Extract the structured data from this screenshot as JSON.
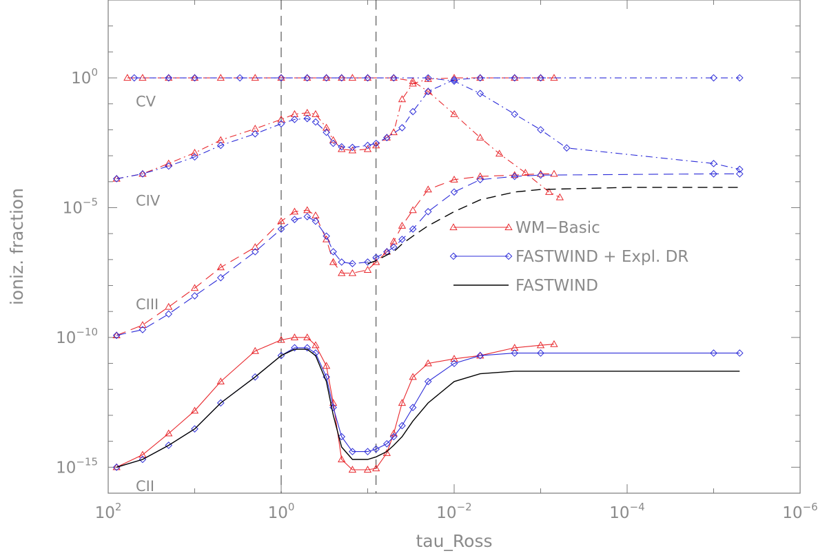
{
  "chart_data": {
    "type": "line",
    "xlabel": "tau_Ross",
    "ylabel": "ioniz. fraction",
    "x_scale": "log",
    "x_reversed": true,
    "xlim": [
      100,
      1e-06
    ],
    "y_scale": "log",
    "ylim": [
      1e-16,
      1000.0
    ],
    "x_ticks": [
      {
        "base": "10",
        "exp": "2",
        "v": 100
      },
      {
        "base": "10",
        "exp": "0",
        "v": 1
      },
      {
        "base": "10",
        "exp": "−2",
        "v": 0.01
      },
      {
        "base": "10",
        "exp": "−4",
        "v": 0.0001
      },
      {
        "base": "10",
        "exp": "−6",
        "v": 1e-06
      }
    ],
    "y_ticks": [
      {
        "base": "10",
        "exp": "0",
        "v": 1
      },
      {
        "base": "10",
        "exp": "−5",
        "v": 1e-05
      },
      {
        "base": "10",
        "exp": "−10",
        "v": 1e-10
      },
      {
        "base": "10",
        "exp": "−15",
        "v": 1e-15
      }
    ],
    "vertical_lines": [
      1.0,
      0.08
    ],
    "ion_labels": [
      {
        "text": "CV",
        "tau": 48,
        "value": 0.08
      },
      {
        "text": "CIV",
        "tau": 48,
        "value": 1.2e-05
      },
      {
        "text": "CIII",
        "tau": 48,
        "value": 1.2e-09
      },
      {
        "text": "CII",
        "tau": 48,
        "value": 1.2e-16
      }
    ],
    "legend": {
      "position": "center-right",
      "entries": [
        {
          "label": "WM−Basic",
          "color": "#e8272c",
          "marker": "triangle"
        },
        {
          "label": "FASTWIND + Expl. DR",
          "color": "#2b2bd8",
          "marker": "diamond"
        },
        {
          "label": "FASTWIND",
          "color": "#000000",
          "marker": "none"
        }
      ]
    },
    "series": [
      {
        "name": "WM−Basic CV",
        "color": "#e8272c",
        "dash": "10 5 2 5",
        "marker": "triangle",
        "points": [
          [
            60,
            1.0
          ],
          [
            40,
            1.0
          ],
          [
            20,
            1.0
          ],
          [
            10,
            1.0
          ],
          [
            5,
            1.0
          ],
          [
            2,
            1.0
          ],
          [
            1,
            1.0
          ],
          [
            0.5,
            1.0
          ],
          [
            0.3,
            1.0
          ],
          [
            0.2,
            1.0
          ],
          [
            0.15,
            1.0
          ],
          [
            0.1,
            1.0
          ],
          [
            0.05,
            1.0
          ],
          [
            0.03,
            0.75
          ],
          [
            0.02,
            0.3
          ],
          [
            0.01,
            0.04
          ],
          [
            0.005,
            0.005
          ],
          [
            0.003,
            0.0012
          ],
          [
            0.0015,
            0.00022
          ],
          [
            0.0008,
            4e-05
          ],
          [
            0.0006,
            2.5e-05
          ]
        ]
      },
      {
        "name": "WM−Basic CIV",
        "color": "#e8272c",
        "dash": "10 5 2 5",
        "marker": "triangle",
        "points": [
          [
            80,
            0.00013
          ],
          [
            40,
            0.0002
          ],
          [
            20,
            0.0005
          ],
          [
            10,
            0.0013
          ],
          [
            5,
            0.004
          ],
          [
            2,
            0.011
          ],
          [
            1,
            0.025
          ],
          [
            0.7,
            0.04
          ],
          [
            0.5,
            0.045
          ],
          [
            0.4,
            0.04
          ],
          [
            0.3,
            0.012
          ],
          [
            0.25,
            0.004
          ],
          [
            0.2,
            0.0018
          ],
          [
            0.15,
            0.0016
          ],
          [
            0.1,
            0.0018
          ],
          [
            0.08,
            0.0025
          ],
          [
            0.06,
            0.005
          ],
          [
            0.05,
            0.008
          ],
          [
            0.04,
            0.15
          ],
          [
            0.03,
            0.6
          ],
          [
            0.02,
            0.9
          ],
          [
            0.01,
            1.0
          ],
          [
            0.005,
            1.0
          ],
          [
            0.002,
            1.0
          ],
          [
            0.001,
            1.0
          ],
          [
            0.0007,
            1.0
          ]
        ]
      },
      {
        "name": "WM−Basic CIII",
        "color": "#e8272c",
        "dash": "14 8",
        "marker": "triangle",
        "points": [
          [
            80,
            1.2e-10
          ],
          [
            40,
            3e-10
          ],
          [
            20,
            1.5e-09
          ],
          [
            10,
            8e-09
          ],
          [
            5,
            5e-08
          ],
          [
            2,
            3e-07
          ],
          [
            1,
            3e-06
          ],
          [
            0.7,
            7e-06
          ],
          [
            0.5,
            8e-06
          ],
          [
            0.4,
            5e-06
          ],
          [
            0.3,
            6e-07
          ],
          [
            0.25,
            8e-08
          ],
          [
            0.2,
            3e-08
          ],
          [
            0.15,
            3e-08
          ],
          [
            0.1,
            4e-08
          ],
          [
            0.08,
            8e-08
          ],
          [
            0.06,
            2e-07
          ],
          [
            0.05,
            5e-07
          ],
          [
            0.04,
            2e-06
          ],
          [
            0.03,
            8e-06
          ],
          [
            0.02,
            5e-05
          ],
          [
            0.01,
            0.00012
          ],
          [
            0.005,
            0.00016
          ],
          [
            0.002,
            0.00018
          ],
          [
            0.001,
            0.0002
          ],
          [
            0.0007,
            0.0002
          ]
        ]
      },
      {
        "name": "WM−Basic CII",
        "color": "#e8272c",
        "dash": "",
        "marker": "triangle",
        "points": [
          [
            80,
            1e-15
          ],
          [
            40,
            3e-15
          ],
          [
            20,
            2e-14
          ],
          [
            10,
            1.5e-13
          ],
          [
            5,
            2e-12
          ],
          [
            2,
            3e-11
          ],
          [
            1,
            8e-11
          ],
          [
            0.7,
            1e-10
          ],
          [
            0.5,
            1e-10
          ],
          [
            0.4,
            5e-11
          ],
          [
            0.3,
            8e-12
          ],
          [
            0.25,
            3e-13
          ],
          [
            0.2,
            2e-15
          ],
          [
            0.15,
            8e-16
          ],
          [
            0.1,
            8e-16
          ],
          [
            0.08,
            9e-16
          ],
          [
            0.06,
            3.5e-15
          ],
          [
            0.05,
            2e-14
          ],
          [
            0.04,
            3e-13
          ],
          [
            0.03,
            3e-12
          ],
          [
            0.02,
            1e-11
          ],
          [
            0.01,
            1.5e-11
          ],
          [
            0.005,
            2e-11
          ],
          [
            0.002,
            4e-11
          ],
          [
            0.001,
            5e-11
          ],
          [
            0.0007,
            5.5e-11
          ]
        ]
      },
      {
        "name": "FASTWIND + Expl. DR CV",
        "color": "#2b2bd8",
        "dash": "10 5 2 5",
        "marker": "diamond",
        "points": [
          [
            50,
            1.0
          ],
          [
            20,
            1.0
          ],
          [
            10,
            1.0
          ],
          [
            3,
            1.0
          ],
          [
            1,
            1.0
          ],
          [
            0.5,
            1.0
          ],
          [
            0.3,
            1.0
          ],
          [
            0.2,
            1.0
          ],
          [
            0.1,
            1.0
          ],
          [
            0.05,
            1.0
          ],
          [
            0.02,
            1.0
          ],
          [
            0.01,
            0.75
          ],
          [
            0.005,
            0.25
          ],
          [
            0.002,
            0.04
          ],
          [
            0.001,
            0.01
          ],
          [
            0.0005,
            0.002
          ],
          [
            1e-05,
            0.0005
          ],
          [
            5e-06,
            0.0003
          ]
        ]
      },
      {
        "name": "FASTWIND + Expl. DR CIV",
        "color": "#2b2bd8",
        "dash": "10 5 2 5",
        "marker": "diamond",
        "points": [
          [
            80,
            0.00013
          ],
          [
            40,
            0.0002
          ],
          [
            20,
            0.0004
          ],
          [
            10,
            0.0009
          ],
          [
            5,
            0.0025
          ],
          [
            2,
            0.007
          ],
          [
            1,
            0.017
          ],
          [
            0.7,
            0.025
          ],
          [
            0.5,
            0.027
          ],
          [
            0.4,
            0.02
          ],
          [
            0.3,
            0.008
          ],
          [
            0.25,
            0.003
          ],
          [
            0.2,
            0.0022
          ],
          [
            0.15,
            0.0021
          ],
          [
            0.1,
            0.0025
          ],
          [
            0.08,
            0.003
          ],
          [
            0.06,
            0.005
          ],
          [
            0.04,
            0.012
          ],
          [
            0.03,
            0.05
          ],
          [
            0.02,
            0.3
          ],
          [
            0.01,
            0.85
          ],
          [
            0.005,
            1.0
          ],
          [
            0.002,
            1.0
          ],
          [
            0.001,
            1.0
          ],
          [
            1e-05,
            1.0
          ],
          [
            5e-06,
            1.0
          ]
        ]
      },
      {
        "name": "FASTWIND + Expl. DR CIII",
        "color": "#2b2bd8",
        "dash": "14 8",
        "marker": "diamond",
        "points": [
          [
            80,
            1.2e-10
          ],
          [
            40,
            2e-10
          ],
          [
            20,
            8e-10
          ],
          [
            10,
            4e-09
          ],
          [
            5,
            2e-08
          ],
          [
            2,
            2e-07
          ],
          [
            1,
            1.5e-06
          ],
          [
            0.7,
            3.5e-06
          ],
          [
            0.5,
            4.5e-06
          ],
          [
            0.4,
            3e-06
          ],
          [
            0.3,
            8e-07
          ],
          [
            0.25,
            2e-07
          ],
          [
            0.2,
            8e-08
          ],
          [
            0.15,
            7e-08
          ],
          [
            0.1,
            8e-08
          ],
          [
            0.08,
            1.2e-07
          ],
          [
            0.06,
            2e-07
          ],
          [
            0.05,
            3e-07
          ],
          [
            0.04,
            6e-07
          ],
          [
            0.03,
            1.5e-06
          ],
          [
            0.02,
            7e-06
          ],
          [
            0.01,
            4e-05
          ],
          [
            0.005,
            0.00012
          ],
          [
            0.002,
            0.00016
          ],
          [
            0.001,
            0.00018
          ],
          [
            1e-05,
            0.0002
          ],
          [
            5e-06,
            0.0002
          ]
        ]
      },
      {
        "name": "FASTWIND + Expl. DR CII",
        "color": "#2b2bd8",
        "dash": "",
        "marker": "diamond",
        "points": [
          [
            80,
            1e-15
          ],
          [
            40,
            2e-15
          ],
          [
            20,
            7e-15
          ],
          [
            10,
            3e-14
          ],
          [
            5,
            3e-13
          ],
          [
            2,
            3e-12
          ],
          [
            1,
            2e-11
          ],
          [
            0.7,
            4e-11
          ],
          [
            0.5,
            4e-11
          ],
          [
            0.4,
            2.5e-11
          ],
          [
            0.3,
            3e-12
          ],
          [
            0.25,
            2e-13
          ],
          [
            0.2,
            1.5e-14
          ],
          [
            0.15,
            4e-15
          ],
          [
            0.1,
            4e-15
          ],
          [
            0.08,
            5e-15
          ],
          [
            0.06,
            8e-15
          ],
          [
            0.05,
            1.5e-14
          ],
          [
            0.04,
            4e-14
          ],
          [
            0.03,
            2e-13
          ],
          [
            0.02,
            2e-12
          ],
          [
            0.01,
            1e-11
          ],
          [
            0.005,
            2e-11
          ],
          [
            0.002,
            2.5e-11
          ],
          [
            0.001,
            2.5e-11
          ],
          [
            1e-05,
            2.5e-11
          ],
          [
            5e-06,
            2.5e-11
          ]
        ]
      },
      {
        "name": "FASTWIND CIII",
        "color": "#000000",
        "dash": "14 8",
        "marker": "none",
        "points": [
          [
            0.1,
            7e-08
          ],
          [
            0.08,
            9e-08
          ],
          [
            0.06,
            1.5e-07
          ],
          [
            0.05,
            2e-07
          ],
          [
            0.04,
            4e-07
          ],
          [
            0.03,
            8e-07
          ],
          [
            0.02,
            2e-06
          ],
          [
            0.01,
            7e-06
          ],
          [
            0.005,
            2e-05
          ],
          [
            0.002,
            4e-05
          ],
          [
            0.001,
            5e-05
          ],
          [
            0.0001,
            6e-05
          ],
          [
            1e-05,
            6e-05
          ],
          [
            5e-06,
            6e-05
          ]
        ]
      },
      {
        "name": "FASTWIND CII",
        "color": "#000000",
        "dash": "",
        "marker": "none",
        "points": [
          [
            80,
            1e-15
          ],
          [
            40,
            2e-15
          ],
          [
            20,
            7e-15
          ],
          [
            10,
            3e-14
          ],
          [
            5,
            3e-13
          ],
          [
            2,
            3e-12
          ],
          [
            1,
            2e-11
          ],
          [
            0.7,
            3.5e-11
          ],
          [
            0.5,
            3.5e-11
          ],
          [
            0.4,
            2e-11
          ],
          [
            0.3,
            2e-12
          ],
          [
            0.25,
            1e-13
          ],
          [
            0.2,
            6e-15
          ],
          [
            0.15,
            2e-15
          ],
          [
            0.1,
            2e-15
          ],
          [
            0.08,
            2.5e-15
          ],
          [
            0.06,
            4e-15
          ],
          [
            0.05,
            7e-15
          ],
          [
            0.04,
            1.5e-14
          ],
          [
            0.03,
            6e-14
          ],
          [
            0.02,
            3e-13
          ],
          [
            0.01,
            2e-12
          ],
          [
            0.005,
            4e-12
          ],
          [
            0.002,
            5e-12
          ],
          [
            0.001,
            5e-12
          ],
          [
            1e-05,
            5e-12
          ],
          [
            5e-06,
            5e-12
          ]
        ]
      }
    ]
  }
}
